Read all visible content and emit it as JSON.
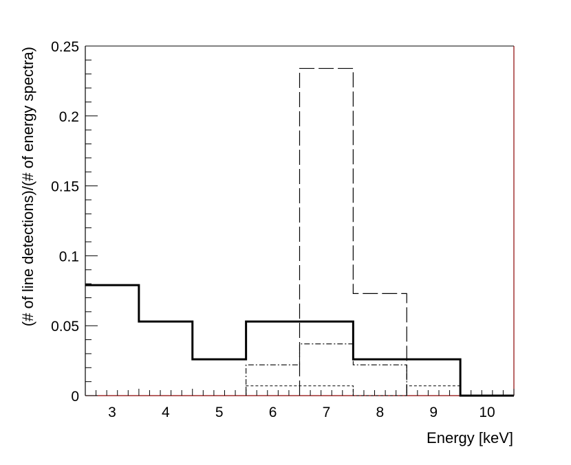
{
  "chart_data": {
    "type": "histogram",
    "xlabel": "Energy [keV]",
    "ylabel": "(# of line detections)/(# of energy spectra)",
    "xlim": [
      2.5,
      10.5
    ],
    "ylim": [
      0,
      0.25
    ],
    "x_ticks": [
      3,
      4,
      5,
      6,
      7,
      8,
      9,
      10
    ],
    "x_tick_labels": [
      "3",
      "4",
      "5",
      "6",
      "7",
      "8",
      "9",
      "10"
    ],
    "y_ticks": [
      0,
      0.05,
      0.1,
      0.15,
      0.2,
      0.25
    ],
    "y_tick_labels": [
      "0",
      "0.05",
      "0.1",
      "0.15",
      "0.2",
      "0.25"
    ],
    "bin_edges": [
      2.5,
      3.5,
      4.5,
      5.5,
      6.5,
      7.5,
      8.5,
      9.5,
      10.5
    ],
    "series": [
      {
        "style": "solid-thick",
        "values": [
          0.079,
          0.053,
          0.026,
          0.053,
          0.053,
          0.026,
          0.026,
          0.0
        ]
      },
      {
        "style": "long-dash",
        "values": [
          0,
          0,
          0,
          0,
          0.234,
          0.073,
          0,
          0
        ]
      },
      {
        "style": "dash-dot",
        "values": [
          0,
          0,
          0,
          0.022,
          0.037,
          0.022,
          0,
          0
        ]
      },
      {
        "style": "short-dash",
        "values": [
          0,
          0,
          0,
          0.007,
          0.007,
          0,
          0.007,
          0
        ]
      }
    ],
    "grid": false,
    "colors": {
      "axis": "#000000",
      "frame_right": "#8b0000",
      "baseline": "#8b0000"
    }
  }
}
